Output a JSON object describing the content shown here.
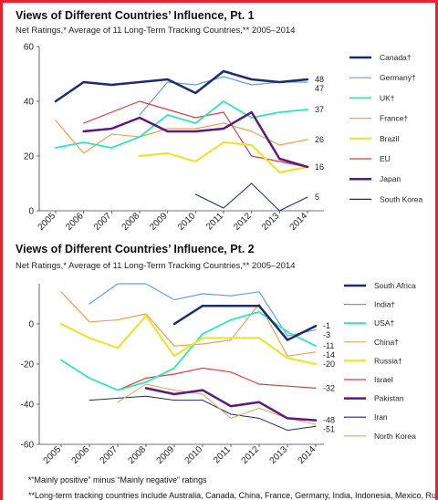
{
  "chart_data": [
    {
      "type": "line",
      "title": "Views of Different Countries’ Influence, Pt. 1",
      "subtitle": "Net Ratings,* Average of 11 Long-Term Tracking Countries,** 2005–2014",
      "x": [
        "2005",
        "2006",
        "2007",
        "2008",
        "2009",
        "2010",
        "2011",
        "2012",
        "2013",
        "2014"
      ],
      "ylim": [
        0,
        60
      ],
      "yticks": [
        0,
        20,
        40,
        60
      ],
      "grid": false,
      "legend_position": "right",
      "series": [
        {
          "name": "Canada†",
          "color": "#1c2c6e",
          "width": 2.5,
          "values": [
            40,
            47,
            46,
            47,
            48,
            43,
            51,
            48,
            47,
            48
          ],
          "end_label": "48"
        },
        {
          "name": "Germany†",
          "color": "#6a9fd4",
          "width": 1.2,
          "values": [
            null,
            null,
            null,
            35,
            47,
            46,
            49,
            46,
            47,
            47
          ],
          "end_label": "47"
        },
        {
          "name": "UK†",
          "color": "#2ee8b4",
          "width": 1.8,
          "values": [
            23,
            25,
            23,
            27,
            35,
            32,
            40,
            34,
            36,
            37
          ],
          "end_label": "37"
        },
        {
          "name": "France†",
          "color": "#f0a050",
          "width": 1.2,
          "values": [
            33,
            21,
            28,
            27,
            30,
            30,
            32,
            29,
            24,
            26
          ],
          "end_label": "26"
        },
        {
          "name": "Brazil",
          "color": "#e6e633",
          "width": 2.2,
          "values": [
            null,
            null,
            null,
            20,
            21,
            18,
            25,
            24,
            14,
            16
          ],
          "end_label": null
        },
        {
          "name": "EU",
          "color": "#e23c3c",
          "width": 1.2,
          "values": [
            null,
            32,
            36,
            40,
            37,
            34,
            36,
            20,
            18,
            16
          ],
          "end_label": null
        },
        {
          "name": "Japan",
          "color": "#5a1a80",
          "width": 2.5,
          "values": [
            null,
            29,
            30,
            34,
            29,
            29,
            30,
            36,
            19,
            16
          ],
          "end_label": "16"
        },
        {
          "name": "South Korea",
          "color": "#1c2c6e",
          "width": 1.0,
          "values": [
            null,
            null,
            null,
            null,
            null,
            6,
            1,
            10,
            0,
            5
          ],
          "end_label": "5"
        }
      ]
    },
    {
      "type": "line",
      "title": "Views of Different Countries’ Influence, Pt. 2",
      "subtitle": "Net Ratings,* Average of 11 Long-Term Tracking Countries,** 2005–2014",
      "x": [
        "2005",
        "2006",
        "2007",
        "2008",
        "2009",
        "2010",
        "2011",
        "2012",
        "2013",
        "2014"
      ],
      "ylim": [
        -60,
        20
      ],
      "yticks": [
        -60,
        -40,
        -20,
        0
      ],
      "grid": false,
      "legend_position": "right",
      "series": [
        {
          "name": "South Africa",
          "color": "#1c2c6e",
          "width": 2.5,
          "values": [
            null,
            null,
            null,
            null,
            0,
            9,
            9,
            9,
            -8,
            -1
          ],
          "end_label": "-1"
        },
        {
          "name": "India†",
          "color": "#6a9fd4",
          "width": 1.2,
          "values": [
            null,
            10,
            20,
            20,
            12,
            15,
            14,
            16,
            -6,
            -3
          ],
          "end_label": "-3"
        },
        {
          "name": "USA†",
          "color": "#2ee8b4",
          "width": 1.8,
          "values": [
            -18,
            -27,
            -33,
            -29,
            -22,
            -5,
            2,
            6,
            -4,
            -11
          ],
          "end_label": "-11"
        },
        {
          "name": "China†",
          "color": "#f0a050",
          "width": 1.2,
          "values": [
            16,
            1,
            2,
            5,
            -11,
            -10,
            -8,
            10,
            -16,
            -14
          ],
          "end_label": "-14"
        },
        {
          "name": "Russia†",
          "color": "#e6e633",
          "width": 2.2,
          "values": [
            0,
            -7,
            -12,
            4,
            -16,
            -7,
            -7,
            -7,
            -17,
            -20
          ],
          "end_label": "-20"
        },
        {
          "name": "Israel",
          "color": "#e23c3c",
          "width": 1.2,
          "values": [
            null,
            null,
            -33,
            -27,
            -25,
            -22,
            -24,
            -30,
            -31,
            -32
          ],
          "end_label": "-32"
        },
        {
          "name": "Pakistan",
          "color": "#5a1a80",
          "width": 2.5,
          "values": [
            null,
            null,
            null,
            -32,
            -35,
            -33,
            -41,
            -39,
            -47,
            -48
          ],
          "end_label": "-48"
        },
        {
          "name": "Iran",
          "color": "#1c2c6e",
          "width": 1.0,
          "values": [
            null,
            -38,
            -37,
            -36,
            -38,
            -38,
            -45,
            -47,
            -53,
            -51
          ],
          "end_label": "-51"
        },
        {
          "name": "North Korea",
          "color": "#f0a050",
          "width": 1.0,
          "values": [
            null,
            null,
            -39,
            -30,
            -33,
            -35,
            -47,
            -42,
            -47,
            -50
          ],
          "end_label": null
        }
      ]
    }
  ],
  "footnotes": {
    "line1": "*“Mainly positive” minus “Mainly negative” ratings",
    "line2": "**Long-term tracking countries include Australia, Canada, China, France, Germany, India, Indonesia, Mexico, Russia, the"
  }
}
